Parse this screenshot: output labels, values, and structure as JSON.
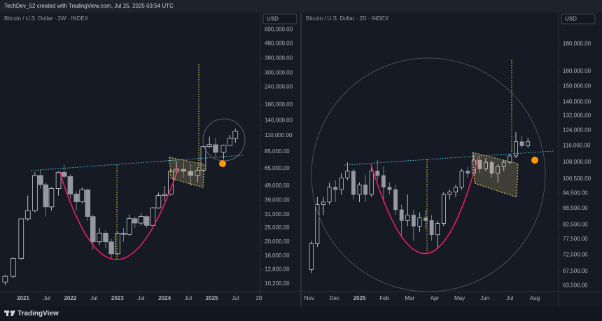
{
  "credit": "TechDev_52 created with TradingView.com, Jul 25, 2025 03:54 UTC",
  "brand": "TradingView",
  "chart_data": [
    {
      "type": "candlestick",
      "title": "Bitcoin / U.S. Dollar · 2W · INDEX",
      "currency": "USD",
      "log_scale": true,
      "up_color": "#e0e3eb",
      "down_color": "#9598a1",
      "x": [
        2020.62,
        2020.79,
        2020.96,
        2021.1,
        2021.25,
        2021.37,
        2021.48,
        2021.6,
        2021.75,
        2021.87,
        2022.0,
        2022.13,
        2022.25,
        2022.37,
        2022.48,
        2022.62,
        2022.75,
        2022.87,
        2023.0,
        2023.13,
        2023.25,
        2023.37,
        2023.5,
        2023.62,
        2023.75,
        2023.87,
        2024.0,
        2024.13,
        2024.25,
        2024.4,
        2024.55,
        2024.7,
        2024.82,
        2024.95,
        2025.08,
        2025.25,
        2025.38,
        2025.5
      ],
      "open": [
        10500,
        11500,
        15300,
        28900,
        33000,
        58000,
        50000,
        35000,
        47000,
        61000,
        57000,
        43000,
        38000,
        46000,
        30000,
        20000,
        23000,
        20000,
        16500,
        23000,
        22500,
        29000,
        27000,
        30000,
        26000,
        34500,
        42000,
        43000,
        62000,
        64000,
        62000,
        58000,
        63000,
        92000,
        95000,
        84000,
        94000,
        105000
      ],
      "high": [
        11800,
        15500,
        29000,
        42000,
        61000,
        64000,
        52000,
        48000,
        62000,
        69000,
        59000,
        45000,
        48000,
        47000,
        31000,
        25000,
        24000,
        21000,
        23500,
        25000,
        31000,
        30000,
        31500,
        30500,
        35000,
        44000,
        49000,
        64000,
        73000,
        72000,
        70000,
        66000,
        93000,
        108000,
        106000,
        95000,
        111000,
        123000
      ],
      "low": [
        10000,
        11200,
        15000,
        28000,
        32000,
        47000,
        30000,
        33000,
        42000,
        55000,
        40000,
        33000,
        37000,
        28000,
        17600,
        19000,
        18000,
        15500,
        16300,
        20000,
        22000,
        25000,
        26000,
        25000,
        26000,
        34000,
        38500,
        42000,
        60000,
        56000,
        49000,
        52000,
        62000,
        90000,
        78000,
        75000,
        93000,
        98000
      ],
      "close": [
        11500,
        15300,
        28900,
        33000,
        58000,
        50000,
        35000,
        47000,
        61000,
        57000,
        43000,
        38000,
        46000,
        30000,
        20000,
        23000,
        20000,
        16500,
        23000,
        22500,
        29000,
        27000,
        30000,
        26000,
        34500,
        42000,
        43000,
        62000,
        64000,
        62000,
        58000,
        63000,
        92000,
        95000,
        84000,
        94000,
        105000,
        118000
      ],
      "xlim": [
        2020.54,
        2026.03
      ],
      "xticks": [
        2021,
        {
          "value": 2021.5,
          "label": "Jul"
        },
        2022,
        {
          "value": 2022.5,
          "label": "Jul"
        },
        2023,
        {
          "value": 2023.5,
          "label": "Jul"
        },
        2024,
        {
          "value": 2024.5,
          "label": "Jul"
        },
        2025,
        {
          "value": 2025.5,
          "label": "Jul"
        },
        {
          "value": 2026,
          "label": "20"
        }
      ],
      "ylim": [
        9200,
        790000
      ],
      "yticks": [
        {
          "value": 600000,
          "label": "600,000.00"
        },
        {
          "value": 480000,
          "label": "480,000.00"
        },
        {
          "value": 380000,
          "label": "380,000.00"
        },
        {
          "value": 300000,
          "label": "300,000.00"
        },
        {
          "value": 240000,
          "label": "240,000.00"
        },
        {
          "value": 180000,
          "label": "180,000.00"
        },
        {
          "value": 140000,
          "label": "140,000.00"
        },
        {
          "value": 110000,
          "label": "110,000.00"
        },
        {
          "value": 85000,
          "label": "85,000.00"
        },
        {
          "value": 65000,
          "label": "65,000.00"
        },
        {
          "value": 49000,
          "label": "49,000.00"
        },
        {
          "value": 39000,
          "label": "39,000.00"
        },
        {
          "value": 31000,
          "label": "31,000.00"
        },
        {
          "value": 25000,
          "label": "25,000.00"
        },
        {
          "value": 20000,
          "label": "20,000.00"
        },
        {
          "value": 16000,
          "label": "16,000.00"
        },
        {
          "value": 12800,
          "label": "12,800.00"
        },
        {
          "value": 10200,
          "label": "10,200.00"
        }
      ]
    },
    {
      "type": "candlestick",
      "title": "Bitcoin / U.S. Dollar · 2D · INDEX",
      "currency": "USD",
      "log_scale": true,
      "up_color": "#e0e3eb",
      "down_color": "#9598a1",
      "x": [
        2024.84,
        2024.86,
        2024.88,
        2024.9,
        2024.92,
        2024.94,
        2024.96,
        2024.98,
        2025.0,
        2025.02,
        2025.04,
        2025.06,
        2025.08,
        2025.1,
        2025.12,
        2025.14,
        2025.16,
        2025.18,
        2025.2,
        2025.22,
        2025.24,
        2025.26,
        2025.28,
        2025.3,
        2025.32,
        2025.34,
        2025.36,
        2025.38,
        2025.4,
        2025.42,
        2025.44,
        2025.46,
        2025.48,
        2025.5,
        2025.52,
        2025.54,
        2025.56
      ],
      "open": [
        68000,
        76000,
        90000,
        91000,
        97000,
        96000,
        101000,
        104000,
        94000,
        98000,
        94000,
        104000,
        102000,
        97000,
        96000,
        88000,
        84000,
        86000,
        82000,
        85000,
        84000,
        79000,
        83000,
        94000,
        95000,
        97000,
        104000,
        103000,
        109000,
        105000,
        108000,
        103000,
        106000,
        108000,
        111000,
        118000,
        116000
      ],
      "high": [
        77000,
        93000,
        93000,
        99000,
        100000,
        103000,
        108000,
        105000,
        99000,
        102000,
        106000,
        109000,
        106000,
        99000,
        98000,
        90000,
        94000,
        88000,
        87000,
        88000,
        86000,
        84000,
        95000,
        96000,
        98000,
        105000,
        106000,
        112000,
        111000,
        110000,
        109000,
        107000,
        109000,
        112000,
        123000,
        121000,
        120000
      ],
      "low": [
        67000,
        75000,
        86000,
        90000,
        91000,
        94000,
        100000,
        92000,
        91000,
        91000,
        93000,
        100000,
        91000,
        94000,
        86000,
        78000,
        82000,
        77000,
        80000,
        81000,
        77000,
        74500,
        82000,
        92000,
        93000,
        96000,
        101000,
        102000,
        103000,
        104000,
        101000,
        99000,
        104000,
        107000,
        110000,
        115000,
        115000
      ],
      "close": [
        76000,
        90000,
        91000,
        97000,
        96000,
        101000,
        104000,
        94000,
        98000,
        94000,
        104000,
        102000,
        97000,
        96000,
        88000,
        84000,
        86000,
        82000,
        85000,
        84000,
        79000,
        83000,
        94000,
        95000,
        97000,
        104000,
        103000,
        109000,
        105000,
        108000,
        103000,
        106000,
        108000,
        111000,
        118000,
        116000,
        118000
      ],
      "xlim": [
        2024.815,
        2025.662
      ],
      "xticks": [
        {
          "value": 2024.833,
          "label": "Nov"
        },
        {
          "value": 2024.917,
          "label": "Dec"
        },
        2025,
        {
          "value": 2025.083,
          "label": "Feb"
        },
        {
          "value": 2025.167,
          "label": "Mar"
        },
        {
          "value": 2025.25,
          "label": "Apr"
        },
        {
          "value": 2025.333,
          "label": "May"
        },
        {
          "value": 2025.417,
          "label": "Jun"
        },
        {
          "value": 2025.5,
          "label": "Jul"
        },
        {
          "value": 2025.583,
          "label": "Aug"
        }
      ],
      "ylim": [
        62200,
        206000
      ],
      "yticks": [
        {
          "value": 180000,
          "label": "180,000.00"
        },
        {
          "value": 160000,
          "label": "160,000.00"
        },
        {
          "value": 150000,
          "label": "150,000.00"
        },
        {
          "value": 140000,
          "label": "140,000.00"
        },
        {
          "value": 132000,
          "label": "132,000.00"
        },
        {
          "value": 124000,
          "label": "124,000.00"
        },
        {
          "value": 116000,
          "label": "116,000.00"
        },
        {
          "value": 108000,
          "label": "108,000.00"
        },
        {
          "value": 100500,
          "label": "100,500.00"
        },
        {
          "value": 94500,
          "label": "94,500.00"
        },
        {
          "value": 88500,
          "label": "88,500.00"
        },
        {
          "value": 82500,
          "label": "82,500.00"
        },
        {
          "value": 77500,
          "label": "77,500.00"
        },
        {
          "value": 72500,
          "label": "72,500.00"
        },
        {
          "value": 67500,
          "label": "67,500.00"
        },
        {
          "value": 63500,
          "label": "63,500.00"
        }
      ]
    }
  ]
}
